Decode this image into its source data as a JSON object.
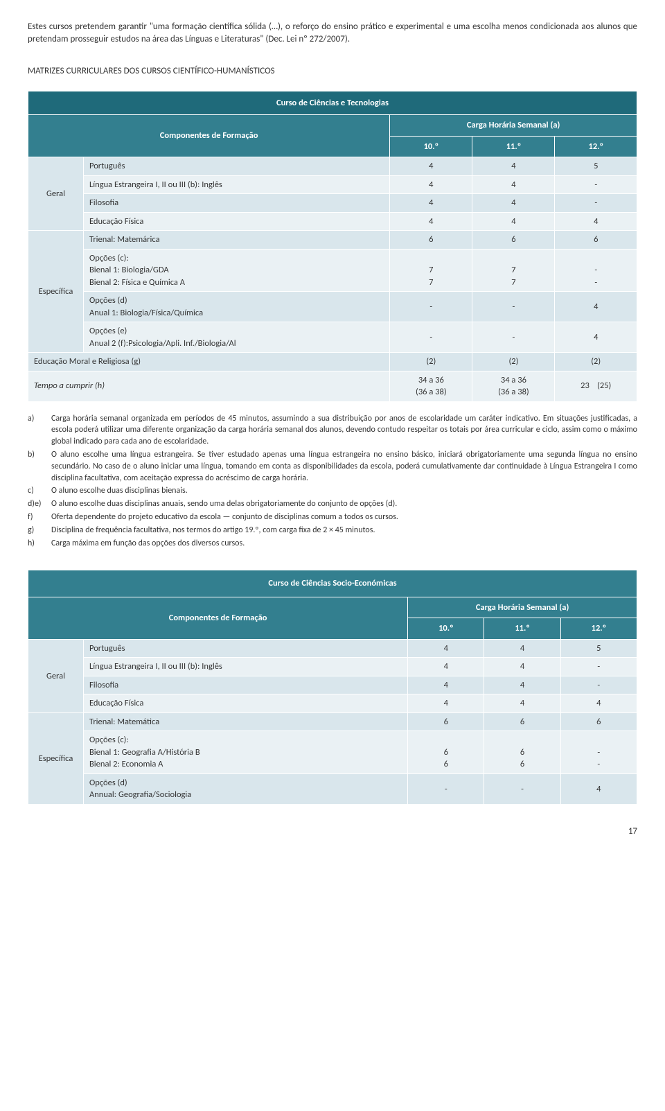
{
  "intro": "Estes cursos pretendem garantir \"uma formação científica sólida (…), o reforço do ensino prático e experimental e uma escolha menos condicionada aos alunos que pretendam prosseguir estudos na área das Línguas e Literaturas\" (Dec. Lei nº 272/2007).",
  "section_title": "MATRIZES CURRICULARES DOS CURSOS CIENTÍFICO-HUMANÍSTICOS",
  "table1": {
    "course_title": "Curso de Ciências e Tecnologias",
    "components_label": "Componentes de Formação",
    "workload_label": "Carga Horária Semanal (a)",
    "col_years": [
      "10.º",
      "11.º",
      "12.º"
    ],
    "geral_label": "Geral",
    "especifica_label": "Específica",
    "geral_rows": [
      {
        "name": "Português",
        "v": [
          "4",
          "4",
          "5"
        ]
      },
      {
        "name": "Língua Estrangeira I, II ou III (b): Inglês",
        "v": [
          "4",
          "4",
          "-"
        ]
      },
      {
        "name": "Filosofia",
        "v": [
          "4",
          "4",
          "-"
        ]
      },
      {
        "name": "Educação Física",
        "v": [
          "4",
          "4",
          "4"
        ]
      }
    ],
    "especifica_rows": [
      {
        "name": "Trienal: Matemárica",
        "v": [
          "6",
          "6",
          "6"
        ]
      },
      {
        "name_html": "Opções (c):\nBienal 1: Biologia/GDA\nBienal 2: Física e Química A",
        "v": [
          "7\n7",
          "7\n7",
          "-\n-"
        ]
      },
      {
        "name_html": "Opções (d)\nAnual 1: Biologia/Física/Química",
        "v": [
          "-",
          "-",
          "4"
        ]
      },
      {
        "name_html": "Opções (e)\nAnual 2 (f):Psicologia/Apli. Inf./Biologia/Al",
        "v": [
          "-",
          "-",
          "4"
        ]
      }
    ],
    "moral_row": {
      "name": "Educação Moral e Religiosa (g)",
      "v": [
        "(2)",
        "(2)",
        "(2)"
      ]
    },
    "tempo_label": "Tempo a cumprir (h)",
    "tempo_vals": [
      "34 a 36\n(36 a 38)",
      "34 a 36\n(36 a 38)",
      "23    (25)"
    ]
  },
  "notes": [
    {
      "k": "a)",
      "t": "Carga horária semanal organizada em períodos de 45 minutos, assumindo a sua distribuição por anos de escolaridade um caráter indicativo. Em situações justificadas, a escola poderá utilizar uma diferente organização da carga horária semanal dos alunos, devendo contudo respeitar os totais por área curricular e ciclo, assim como o máximo global indicado para cada ano de escolaridade."
    },
    {
      "k": "b)",
      "t": "O aluno escolhe uma língua estrangeira. Se tiver estudado apenas uma língua estrangeira no ensino básico, iniciará obrigatoriamente uma segunda língua no ensino secundário. No caso de o aluno iniciar uma língua, tomando em conta as disponibilidades da escola, poderá cumulativamente dar continuidade à Língua Estrangeira I como disciplina facultativa, com aceitação expressa do acréscimo de carga horária."
    },
    {
      "k": "c)",
      "t": "O aluno escolhe duas disciplinas bienais."
    },
    {
      "k": "d)e)",
      "t": "O aluno escolhe duas disciplinas anuais, sendo uma delas obrigatoriamente do conjunto de opções (d)."
    },
    {
      "k": "f)",
      "t": "Oferta dependente do projeto educativo da escola — conjunto de disciplinas comum a todos os cursos."
    },
    {
      "k": "g)",
      "t": "Disciplina de frequência facultativa, nos termos do artigo 19.º, com carga fixa de 2 × 45 minutos."
    },
    {
      "k": "h)",
      "t": "Carga máxima em função das opções dos diversos cursos."
    }
  ],
  "table2": {
    "course_title": "Curso de Ciências Socio-Económicas",
    "components_label": "Componentes de Formação",
    "workload_label": "Carga Horária Semanal (a)",
    "col_years": [
      "10.º",
      "11.º",
      "12.º"
    ],
    "geral_label": "Geral",
    "especifica_label": "Específica",
    "geral_rows": [
      {
        "name": "Português",
        "v": [
          "4",
          "4",
          "5"
        ]
      },
      {
        "name": "Língua Estrangeira I, II ou III (b): Inglês",
        "v": [
          "4",
          "4",
          "-"
        ]
      },
      {
        "name": "Filosofia",
        "v": [
          "4",
          "4",
          "-"
        ]
      },
      {
        "name": "Educação Física",
        "v": [
          "4",
          "4",
          "4"
        ]
      }
    ],
    "especifica_rows": [
      {
        "name": "Trienal: Matemática",
        "v": [
          "6",
          "6",
          "6"
        ]
      },
      {
        "name_html": "Opções (c):\n   Bienal 1: Geografia A/História B\n   Bienal 2: Economia A",
        "v": [
          "6\n6",
          "6\n6",
          "-\n-"
        ]
      },
      {
        "name_html": "Opções (d)\n   Annual: Geografia/Sociologia",
        "v": [
          "-",
          "-",
          "4"
        ]
      }
    ]
  },
  "page_number": "17",
  "colors": {
    "header_dark": "#1f6a7a",
    "header_teal": "#337f8f",
    "row_light": "#d9e6ec",
    "row_alt": "#eaf1f4"
  }
}
